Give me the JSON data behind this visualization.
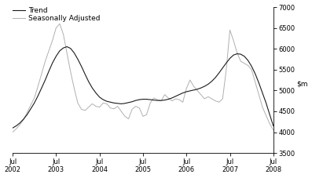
{
  "trend": {
    "x": [
      2002.5,
      2002.583,
      2002.667,
      2002.75,
      2002.833,
      2002.917,
      2003.0,
      2003.083,
      2003.167,
      2003.25,
      2003.333,
      2003.417,
      2003.5,
      2003.583,
      2003.667,
      2003.75,
      2003.833,
      2003.917,
      2004.0,
      2004.083,
      2004.167,
      2004.25,
      2004.333,
      2004.417,
      2004.5,
      2004.583,
      2004.667,
      2004.75,
      2004.833,
      2004.917,
      2005.0,
      2005.083,
      2005.167,
      2005.25,
      2005.333,
      2005.417,
      2005.5,
      2005.583,
      2005.667,
      2005.75,
      2005.833,
      2005.917,
      2006.0,
      2006.083,
      2006.167,
      2006.25,
      2006.333,
      2006.417,
      2006.5,
      2006.583,
      2006.667,
      2006.75,
      2006.833,
      2006.917,
      2007.0,
      2007.083,
      2007.167,
      2007.25,
      2007.333,
      2007.417,
      2007.5,
      2007.583,
      2007.667,
      2007.75,
      2007.833,
      2007.917,
      2008.0,
      2008.083,
      2008.167,
      2008.25,
      2008.333,
      2008.417,
      2008.5
    ],
    "y": [
      4100,
      4150,
      4220,
      4310,
      4420,
      4560,
      4700,
      4870,
      5060,
      5250,
      5460,
      5660,
      5820,
      5950,
      6020,
      6050,
      6010,
      5900,
      5750,
      5580,
      5390,
      5210,
      5060,
      4940,
      4840,
      4780,
      4740,
      4720,
      4700,
      4690,
      4680,
      4690,
      4710,
      4730,
      4760,
      4780,
      4790,
      4790,
      4780,
      4770,
      4760,
      4760,
      4770,
      4790,
      4820,
      4860,
      4900,
      4940,
      4970,
      4990,
      5010,
      5030,
      5060,
      5100,
      5150,
      5220,
      5310,
      5420,
      5540,
      5660,
      5770,
      5850,
      5880,
      5870,
      5820,
      5720,
      5580,
      5400,
      5180,
      4940,
      4700,
      4420,
      4150
    ]
  },
  "seasonal": {
    "x": [
      2002.5,
      2002.583,
      2002.667,
      2002.75,
      2002.833,
      2002.917,
      2003.0,
      2003.083,
      2003.167,
      2003.25,
      2003.333,
      2003.417,
      2003.5,
      2003.583,
      2003.667,
      2003.75,
      2003.833,
      2003.917,
      2004.0,
      2004.083,
      2004.167,
      2004.25,
      2004.333,
      2004.417,
      2004.5,
      2004.583,
      2004.667,
      2004.75,
      2004.833,
      2004.917,
      2005.0,
      2005.083,
      2005.167,
      2005.25,
      2005.333,
      2005.417,
      2005.5,
      2005.583,
      2005.667,
      2005.75,
      2005.833,
      2005.917,
      2006.0,
      2006.083,
      2006.167,
      2006.25,
      2006.333,
      2006.417,
      2006.5,
      2006.583,
      2006.667,
      2006.75,
      2006.833,
      2006.917,
      2007.0,
      2007.083,
      2007.167,
      2007.25,
      2007.333,
      2007.417,
      2007.5,
      2007.583,
      2007.667,
      2007.75,
      2007.833,
      2007.917,
      2008.0,
      2008.083,
      2008.167,
      2008.25,
      2008.333,
      2008.417,
      2008.5
    ],
    "y": [
      4000,
      4080,
      4180,
      4300,
      4470,
      4650,
      4820,
      5100,
      5400,
      5700,
      5950,
      6200,
      6500,
      6600,
      6350,
      5900,
      5450,
      5050,
      4700,
      4550,
      4520,
      4600,
      4680,
      4620,
      4600,
      4700,
      4680,
      4580,
      4560,
      4620,
      4500,
      4380,
      4320,
      4550,
      4620,
      4580,
      4380,
      4420,
      4700,
      4820,
      4780,
      4750,
      4900,
      4820,
      4750,
      4800,
      4780,
      4720,
      5050,
      5250,
      5100,
      5000,
      4900,
      4800,
      4850,
      4800,
      4750,
      4720,
      4800,
      5500,
      6450,
      6200,
      5900,
      5700,
      5650,
      5600,
      5500,
      5200,
      4900,
      4600,
      4400,
      4200,
      4050
    ]
  },
  "xticks": [
    2002.5,
    2003.5,
    2004.5,
    2005.5,
    2006.5,
    2007.5,
    2008.5
  ],
  "xticklabels": [
    "Jul\n2002",
    "Jul\n2003",
    "Jul\n2004",
    "Jul\n2005",
    "Jul\n2006",
    "Jul\n2007",
    "Jul\n2008"
  ],
  "yticks": [
    3500,
    4000,
    4500,
    5000,
    5500,
    6000,
    6500,
    7000
  ],
  "ylim": [
    3500,
    7000
  ],
  "xlim": [
    2002.5,
    2008.5
  ],
  "trend_color": "#1a1a1a",
  "seasonal_color": "#b0b0b0",
  "trend_label": "Trend",
  "seasonal_label": "Seasonally Adjusted",
  "trend_linewidth": 0.8,
  "seasonal_linewidth": 0.7,
  "background_color": "#ffffff",
  "legend_fontsize": 6.5,
  "tick_fontsize": 6.0,
  "ylabel_fontsize": 6.5
}
